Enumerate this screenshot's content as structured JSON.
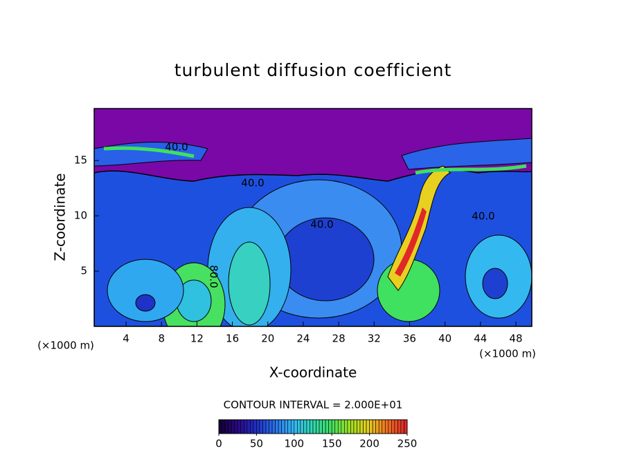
{
  "chart_data": {
    "type": "contour",
    "title": "turbulent diffusion coefficient",
    "xlabel": "X-coordinate",
    "ylabel": "Z-coordinate",
    "x_unit": "(×1000 m)",
    "xlim": [
      0.4,
      49.8
    ],
    "xticks": [
      4,
      8,
      12,
      16,
      20,
      24,
      28,
      32,
      36,
      40,
      44,
      48
    ],
    "ylim": [
      0,
      19.7
    ],
    "yticks": [
      5,
      10,
      15
    ],
    "contour_labels": [
      "40.0",
      "40.0",
      "40.0",
      "40.0",
      "80.0"
    ],
    "contour_interval": "CONTOUR INTERVAL = 2.000E+01",
    "clim": [
      0,
      250
    ],
    "cticks": [
      0,
      50,
      100,
      150,
      200,
      250
    ],
    "colormap": [
      "#16003a",
      "#2a0a8a",
      "#1e32c8",
      "#2a78f0",
      "#34b8f0",
      "#30d8b0",
      "#40e060",
      "#a0e020",
      "#e8d020",
      "#f07020",
      "#e02828"
    ]
  }
}
